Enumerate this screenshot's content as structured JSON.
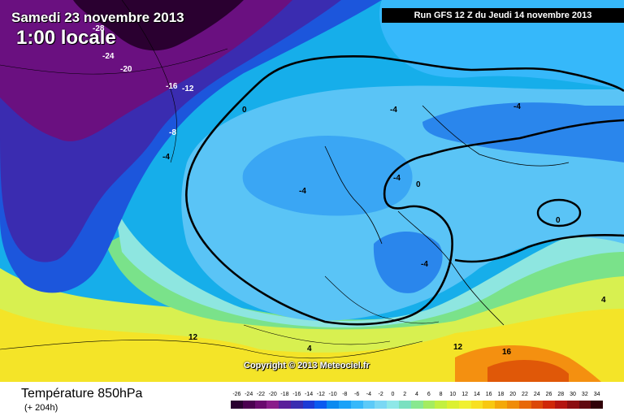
{
  "header": {
    "date": "Samedi 23 novembre 2013",
    "time": "1:00 locale",
    "run": "Run GFS 12 Z du Jeudi 14 novembre 2013"
  },
  "map": {
    "copyright": "Copyright © 2013 Meteociel.fr",
    "isolabels": [
      "-28",
      "-24",
      "-20",
      "-16",
      "-12",
      "-8",
      "-4",
      "0",
      "-4",
      "-4",
      "-4",
      "-4",
      "0",
      "0",
      "-4",
      "12",
      "4",
      "12",
      "16",
      "4"
    ]
  },
  "footer": {
    "title": "Température 850hPa",
    "subtitle": "(+ 204h)"
  },
  "scale": {
    "labels": [
      "-26",
      "-24",
      "-22",
      "-20",
      "-18",
      "-16",
      "-14",
      "-12",
      "-10",
      "-8",
      "-6",
      "-4",
      "-2",
      "0",
      "2",
      "4",
      "6",
      "8",
      "10",
      "12",
      "14",
      "16",
      "18",
      "20",
      "22",
      "24",
      "26",
      "28",
      "30",
      "32",
      "34"
    ],
    "colors": [
      "#2a0030",
      "#4b0050",
      "#6a0a6e",
      "#8a1c8a",
      "#5a1e9a",
      "#3a2cb0",
      "#1c3ad6",
      "#0a5af0",
      "#0a8af0",
      "#1aa2f8",
      "#36b8fa",
      "#5ccaf8",
      "#7ad8f4",
      "#8ee8e8",
      "#7ae0c0",
      "#88e890",
      "#a4ec60",
      "#c2f040",
      "#dcf030",
      "#f0f030",
      "#f8e020",
      "#f8c810",
      "#f4a808",
      "#f08c08",
      "#e86808",
      "#dc4808",
      "#d02808",
      "#b41410",
      "#8c0c10",
      "#600810",
      "#300008"
    ]
  }
}
